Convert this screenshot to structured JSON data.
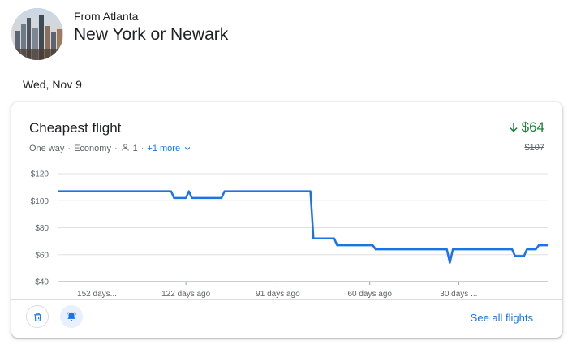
{
  "header": {
    "from_label": "From Atlanta",
    "destination": "New York or Newark"
  },
  "date": "Wed, Nov 9",
  "card": {
    "title": "Cheapest flight",
    "trip_type": "One way",
    "cabin": "Economy",
    "passengers": "1",
    "more_label": "+1 more",
    "price": "$64",
    "old_price": "$107",
    "see_all_label": "See all flights",
    "colors": {
      "price_down": "#188038",
      "line": "#1a73e8",
      "link": "#1a73e8"
    },
    "icons": {
      "price_trend": "arrow-down-icon",
      "passenger": "person-icon",
      "expand": "chevron-down-icon",
      "delete": "trash-icon",
      "alert": "bell-icon"
    }
  },
  "chart_data": {
    "type": "line",
    "y_ticks": [
      "$120",
      "$100",
      "$80",
      "$60",
      "$40"
    ],
    "ylim": [
      40,
      120
    ],
    "x_ticks": [
      {
        "label": "152 days...",
        "days": 152
      },
      {
        "label": "122 days ago",
        "days": 122
      },
      {
        "label": "91 days ago",
        "days": 91
      },
      {
        "label": "60 days ago",
        "days": 60
      },
      {
        "label": "30 days ...",
        "days": 30
      }
    ],
    "xlim": [
      165,
      0
    ],
    "series": [
      {
        "values": [
          [
            165,
            107
          ],
          [
            127,
            107
          ],
          [
            126,
            102
          ],
          [
            122,
            102
          ],
          [
            121,
            107
          ],
          [
            120,
            102
          ],
          [
            110,
            102
          ],
          [
            109,
            107
          ],
          [
            80,
            107
          ],
          [
            79,
            72
          ],
          [
            72,
            72
          ],
          [
            71,
            67
          ],
          [
            59,
            67
          ],
          [
            58,
            64
          ],
          [
            34,
            64
          ],
          [
            33,
            54
          ],
          [
            32,
            64
          ],
          [
            12,
            64
          ],
          [
            11,
            59
          ],
          [
            8,
            59
          ],
          [
            7,
            64
          ],
          [
            4,
            64
          ],
          [
            3,
            67
          ],
          [
            0,
            67
          ]
        ]
      }
    ]
  }
}
